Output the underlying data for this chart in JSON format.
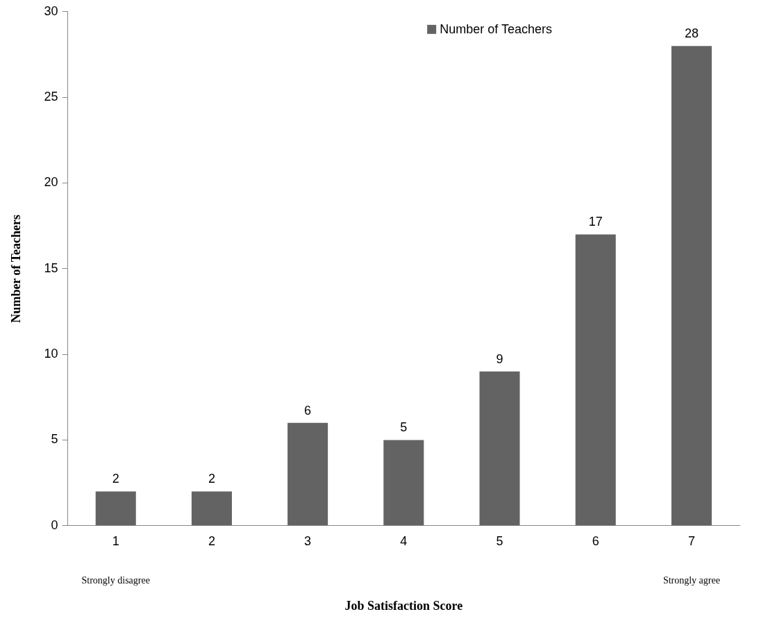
{
  "chart_data": {
    "type": "bar",
    "xlabel": "Job Satisfaction Score",
    "ylabel": "Number of Teachers",
    "categories": [
      "1",
      "2",
      "3",
      "4",
      "5",
      "6",
      "7"
    ],
    "series": [
      {
        "name": "Number of Teachers",
        "color": "#636363",
        "values": [
          2,
          2,
          6,
          5,
          9,
          17,
          28
        ]
      }
    ],
    "ylim": [
      0,
      30
    ],
    "yticks": [
      0,
      5,
      10,
      15,
      20,
      25,
      30
    ],
    "grid": false,
    "legend": "top right",
    "data_labels": true,
    "annotations": [
      "Strongly disagree",
      "Strongly agree"
    ]
  }
}
